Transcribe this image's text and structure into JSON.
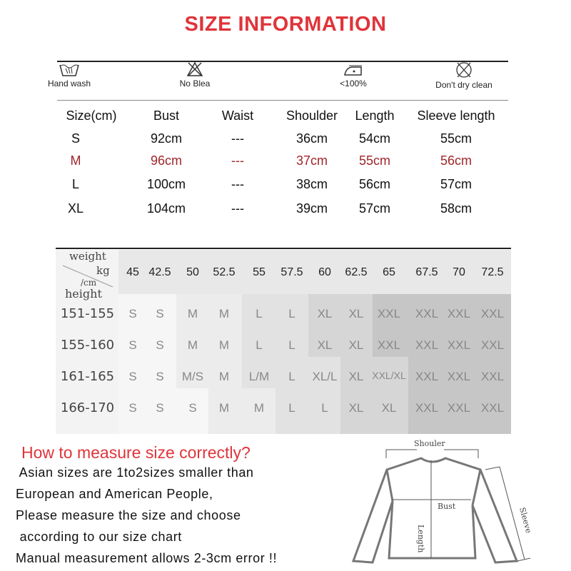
{
  "title": "SIZE INFORMATION",
  "care": [
    {
      "icon": "hand-wash-icon",
      "label": "Hand wash"
    },
    {
      "icon": "no-bleach-icon",
      "label": "No Blea"
    },
    {
      "icon": "iron-icon",
      "label": "<100%"
    },
    {
      "icon": "no-dry-clean-icon",
      "label": "Don't dry clean"
    }
  ],
  "size_table": {
    "headers": [
      "Size(cm)",
      "Bust",
      "Waist",
      "Shoulder",
      "Length",
      "Sleeve length"
    ],
    "rows": [
      [
        "S",
        "92cm",
        "---",
        "36cm",
        "54cm",
        "55cm"
      ],
      [
        "M",
        "96cm",
        "---",
        "37cm",
        "55cm",
        "56cm"
      ],
      [
        "L",
        "100cm",
        "---",
        "38cm",
        "56cm",
        "57cm"
      ],
      [
        "XL",
        "104cm",
        "---",
        "39cm",
        "57cm",
        "58cm"
      ]
    ],
    "highlight_row": "M",
    "highlight_color": "#a0262b"
  },
  "weight_chart": {
    "corner": {
      "weight": "weight",
      "kg": "kg",
      "cm": "/cm",
      "height": "height"
    },
    "weights": [
      "45",
      "42.5",
      "50",
      "52.5",
      "55",
      "57.5",
      "60",
      "62.5",
      "65",
      "67.5",
      "70",
      "72.5"
    ],
    "rows": [
      {
        "height": "151-155",
        "sizes": [
          "S",
          "S",
          "M",
          "M",
          "L",
          "L",
          "XL",
          "XL",
          "XXL",
          "XXL",
          "XXL",
          "XXL"
        ]
      },
      {
        "height": "155-160",
        "sizes": [
          "S",
          "S",
          "M",
          "M",
          "L",
          "L",
          "XL",
          "XL",
          "XXL",
          "XXL",
          "XXL",
          "XXL"
        ]
      },
      {
        "height": "161-165",
        "sizes": [
          "S",
          "S",
          "M/S",
          "M",
          "L/M",
          "L",
          "XL/L",
          "XL",
          "XXL/XL",
          "XXL",
          "XXL",
          "XXL"
        ]
      },
      {
        "height": "166-170",
        "sizes": [
          "S",
          "S",
          "S",
          "M",
          "M",
          "L",
          "L",
          "XL",
          "XL",
          "XXL",
          "XXL",
          "XXL"
        ]
      }
    ]
  },
  "measure": {
    "heading": "How to measure size correctly?",
    "lines": [
      " Asian sizes are 1to2sizes smaller than",
      "European and American People,",
      "Please measure the size and choose",
      " according to our size chart",
      "Manual measurement allows 2-3cm error !!"
    ]
  },
  "diagram": {
    "shoulder": "Shouler",
    "bust": "Bust",
    "length": "Length",
    "sleeve": "Sleeve"
  }
}
